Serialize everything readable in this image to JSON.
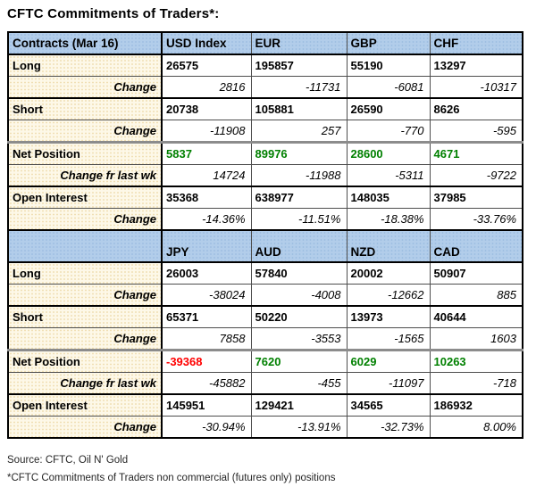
{
  "title": "CFTC Commitments of Traders*:",
  "colors": {
    "header_bg": "#b2cdea",
    "label_bg": "#fdf8e8",
    "positive": "#008000",
    "negative": "#ff0000"
  },
  "sections": [
    {
      "corner_label": "Contracts (Mar 16)",
      "currencies": [
        "USD Index",
        "EUR",
        "GBP",
        "CHF"
      ],
      "rows": [
        {
          "label": "Long",
          "style": "main",
          "values": [
            "26575",
            "195857",
            "55190",
            "13297"
          ]
        },
        {
          "label": "Change",
          "style": "change",
          "values": [
            "2816",
            "-11731",
            "-6081",
            "-10317"
          ]
        },
        {
          "label": "Short",
          "style": "main",
          "values": [
            "20738",
            "105881",
            "26590",
            "8626"
          ]
        },
        {
          "label": "Change",
          "style": "change",
          "values": [
            "-11908",
            "257",
            "-770",
            "-595"
          ]
        },
        {
          "label": "Net Position",
          "style": "net",
          "values": [
            "5837",
            "89976",
            "28600",
            "4671"
          ],
          "value_colors": [
            "positive",
            "positive",
            "positive",
            "positive"
          ]
        },
        {
          "label": "Change fr last wk",
          "style": "change",
          "values": [
            "14724",
            "-11988",
            "-5311",
            "-9722"
          ]
        },
        {
          "label": "Open Interest",
          "style": "main",
          "values": [
            "35368",
            "638977",
            "148035",
            "37985"
          ]
        },
        {
          "label": "Change",
          "style": "change",
          "values": [
            "-14.36%",
            "-11.51%",
            "-18.38%",
            "-33.76%"
          ]
        }
      ]
    },
    {
      "corner_label": "",
      "currencies": [
        "JPY",
        "AUD",
        "NZD",
        "CAD"
      ],
      "rows": [
        {
          "label": "Long",
          "style": "main",
          "values": [
            "26003",
            "57840",
            "20002",
            "50907"
          ]
        },
        {
          "label": "Change",
          "style": "change",
          "values": [
            "-38024",
            "-4008",
            "-12662",
            "885"
          ]
        },
        {
          "label": "Short",
          "style": "main",
          "values": [
            "65371",
            "50220",
            "13973",
            "40644"
          ]
        },
        {
          "label": "Change",
          "style": "change",
          "values": [
            "7858",
            "-3553",
            "-1565",
            "1603"
          ]
        },
        {
          "label": "Net Position",
          "style": "net",
          "values": [
            "-39368",
            "7620",
            "6029",
            "10263"
          ],
          "value_colors": [
            "negative",
            "positive",
            "positive",
            "positive"
          ]
        },
        {
          "label": "Change fr last wk",
          "style": "change",
          "values": [
            "-45882",
            "-455",
            "-11097",
            "-718"
          ]
        },
        {
          "label": "Open Interest",
          "style": "main",
          "values": [
            "145951",
            "129421",
            "34565",
            "186932"
          ]
        },
        {
          "label": "Change",
          "style": "change",
          "values": [
            "-30.94%",
            "-13.91%",
            "-32.73%",
            "8.00%"
          ]
        }
      ]
    }
  ],
  "footer": {
    "source": "Source: CFTC, Oil N' Gold",
    "note": "*CFTC Commitments of Traders non commercial (futures only) positions"
  },
  "chart_data": {
    "type": "table",
    "title": "CFTC Commitments of Traders*:",
    "report_date": "Mar 16",
    "row_headers": [
      "Long",
      "Change",
      "Short",
      "Change",
      "Net Position",
      "Change fr last wk",
      "Open Interest",
      "Change"
    ],
    "columns": [
      "USD Index",
      "EUR",
      "GBP",
      "CHF",
      "JPY",
      "AUD",
      "NZD",
      "CAD"
    ],
    "long": [
      26575,
      195857,
      55190,
      13297,
      26003,
      57840,
      20002,
      50907
    ],
    "long_change": [
      2816,
      -11731,
      -6081,
      -10317,
      -38024,
      -4008,
      -12662,
      885
    ],
    "short": [
      20738,
      105881,
      26590,
      8626,
      65371,
      50220,
      13973,
      40644
    ],
    "short_change": [
      -11908,
      257,
      -770,
      -595,
      7858,
      -3553,
      -1565,
      1603
    ],
    "net_position": [
      5837,
      89976,
      28600,
      4671,
      -39368,
      7620,
      6029,
      10263
    ],
    "change_fr_last_wk": [
      14724,
      -11988,
      -5311,
      -9722,
      -45882,
      -455,
      -11097,
      -718
    ],
    "open_interest": [
      35368,
      638977,
      148035,
      37985,
      145951,
      129421,
      34565,
      186932
    ],
    "open_interest_change_pct": [
      -14.36,
      -11.51,
      -18.38,
      -33.76,
      -30.94,
      -13.91,
      -32.73,
      8.0
    ]
  }
}
